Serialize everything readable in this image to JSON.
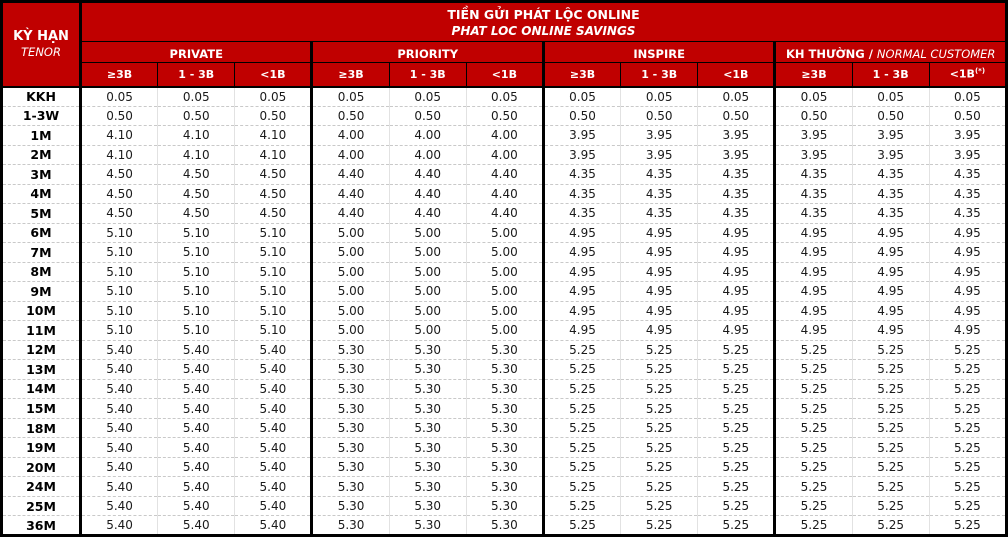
{
  "colors": {
    "header_red": "#C00000",
    "border_black": "#000000",
    "grid_line_gray": "#c9c9c9",
    "value_text": "#1a1a1a"
  },
  "header": {
    "tenor": {
      "vi": "KỲ HẠN",
      "en": "TENOR"
    },
    "title": {
      "vi": "TIỀN GỬI PHÁT LỘC ONLINE",
      "en": "PHAT LOC ONLINE SAVINGS"
    },
    "groups": [
      {
        "label": "PRIVATE"
      },
      {
        "label": "PRIORITY"
      },
      {
        "label": "INSPIRE"
      },
      {
        "label_bold": "KH THƯỜNG / ",
        "label_italic": "NORMAL CUSTOMER"
      }
    ],
    "sub_headers": [
      "≥3B",
      "1 - 3B",
      "<1B",
      "≥3B",
      "1 - 3B",
      "<1B",
      "≥3B",
      "1 - 3B",
      "<1B",
      "≥3B",
      "1 - 3B",
      "<1B"
    ],
    "footnote_mark": "(*)"
  },
  "table": {
    "type": "table",
    "title": "TIỀN GỬI PHÁT LỘC ONLINE / PHAT LOC ONLINE SAVINGS",
    "column_groups": [
      "PRIVATE",
      "PRIORITY",
      "INSPIRE",
      "KH THƯỜNG / NORMAL CUSTOMER"
    ],
    "sub_columns_per_group": [
      "≥3B",
      "1 - 3B",
      "<1B"
    ],
    "rows": [
      {
        "tenor": "KKH",
        "values": [
          "0.05",
          "0.05",
          "0.05",
          "0.05",
          "0.05",
          "0.05",
          "0.05",
          "0.05",
          "0.05",
          "0.05",
          "0.05",
          "0.05"
        ]
      },
      {
        "tenor": "1-3W",
        "values": [
          "0.50",
          "0.50",
          "0.50",
          "0.50",
          "0.50",
          "0.50",
          "0.50",
          "0.50",
          "0.50",
          "0.50",
          "0.50",
          "0.50"
        ]
      },
      {
        "tenor": "1M",
        "values": [
          "4.10",
          "4.10",
          "4.10",
          "4.00",
          "4.00",
          "4.00",
          "3.95",
          "3.95",
          "3.95",
          "3.95",
          "3.95",
          "3.95"
        ]
      },
      {
        "tenor": "2M",
        "values": [
          "4.10",
          "4.10",
          "4.10",
          "4.00",
          "4.00",
          "4.00",
          "3.95",
          "3.95",
          "3.95",
          "3.95",
          "3.95",
          "3.95"
        ]
      },
      {
        "tenor": "3M",
        "values": [
          "4.50",
          "4.50",
          "4.50",
          "4.40",
          "4.40",
          "4.40",
          "4.35",
          "4.35",
          "4.35",
          "4.35",
          "4.35",
          "4.35"
        ]
      },
      {
        "tenor": "4M",
        "values": [
          "4.50",
          "4.50",
          "4.50",
          "4.40",
          "4.40",
          "4.40",
          "4.35",
          "4.35",
          "4.35",
          "4.35",
          "4.35",
          "4.35"
        ]
      },
      {
        "tenor": "5M",
        "values": [
          "4.50",
          "4.50",
          "4.50",
          "4.40",
          "4.40",
          "4.40",
          "4.35",
          "4.35",
          "4.35",
          "4.35",
          "4.35",
          "4.35"
        ]
      },
      {
        "tenor": "6M",
        "values": [
          "5.10",
          "5.10",
          "5.10",
          "5.00",
          "5.00",
          "5.00",
          "4.95",
          "4.95",
          "4.95",
          "4.95",
          "4.95",
          "4.95"
        ]
      },
      {
        "tenor": "7M",
        "values": [
          "5.10",
          "5.10",
          "5.10",
          "5.00",
          "5.00",
          "5.00",
          "4.95",
          "4.95",
          "4.95",
          "4.95",
          "4.95",
          "4.95"
        ]
      },
      {
        "tenor": "8M",
        "values": [
          "5.10",
          "5.10",
          "5.10",
          "5.00",
          "5.00",
          "5.00",
          "4.95",
          "4.95",
          "4.95",
          "4.95",
          "4.95",
          "4.95"
        ]
      },
      {
        "tenor": "9M",
        "values": [
          "5.10",
          "5.10",
          "5.10",
          "5.00",
          "5.00",
          "5.00",
          "4.95",
          "4.95",
          "4.95",
          "4.95",
          "4.95",
          "4.95"
        ]
      },
      {
        "tenor": "10M",
        "values": [
          "5.10",
          "5.10",
          "5.10",
          "5.00",
          "5.00",
          "5.00",
          "4.95",
          "4.95",
          "4.95",
          "4.95",
          "4.95",
          "4.95"
        ]
      },
      {
        "tenor": "11M",
        "values": [
          "5.10",
          "5.10",
          "5.10",
          "5.00",
          "5.00",
          "5.00",
          "4.95",
          "4.95",
          "4.95",
          "4.95",
          "4.95",
          "4.95"
        ]
      },
      {
        "tenor": "12M",
        "values": [
          "5.40",
          "5.40",
          "5.40",
          "5.30",
          "5.30",
          "5.30",
          "5.25",
          "5.25",
          "5.25",
          "5.25",
          "5.25",
          "5.25"
        ]
      },
      {
        "tenor": "13M",
        "values": [
          "5.40",
          "5.40",
          "5.40",
          "5.30",
          "5.30",
          "5.30",
          "5.25",
          "5.25",
          "5.25",
          "5.25",
          "5.25",
          "5.25"
        ]
      },
      {
        "tenor": "14M",
        "values": [
          "5.40",
          "5.40",
          "5.40",
          "5.30",
          "5.30",
          "5.30",
          "5.25",
          "5.25",
          "5.25",
          "5.25",
          "5.25",
          "5.25"
        ]
      },
      {
        "tenor": "15M",
        "values": [
          "5.40",
          "5.40",
          "5.40",
          "5.30",
          "5.30",
          "5.30",
          "5.25",
          "5.25",
          "5.25",
          "5.25",
          "5.25",
          "5.25"
        ]
      },
      {
        "tenor": "18M",
        "values": [
          "5.40",
          "5.40",
          "5.40",
          "5.30",
          "5.30",
          "5.30",
          "5.25",
          "5.25",
          "5.25",
          "5.25",
          "5.25",
          "5.25"
        ]
      },
      {
        "tenor": "19M",
        "values": [
          "5.40",
          "5.40",
          "5.40",
          "5.30",
          "5.30",
          "5.30",
          "5.25",
          "5.25",
          "5.25",
          "5.25",
          "5.25",
          "5.25"
        ]
      },
      {
        "tenor": "20M",
        "values": [
          "5.40",
          "5.40",
          "5.40",
          "5.30",
          "5.30",
          "5.30",
          "5.25",
          "5.25",
          "5.25",
          "5.25",
          "5.25",
          "5.25"
        ]
      },
      {
        "tenor": "24M",
        "values": [
          "5.40",
          "5.40",
          "5.40",
          "5.30",
          "5.30",
          "5.30",
          "5.25",
          "5.25",
          "5.25",
          "5.25",
          "5.25",
          "5.25"
        ]
      },
      {
        "tenor": "25M",
        "values": [
          "5.40",
          "5.40",
          "5.40",
          "5.30",
          "5.30",
          "5.30",
          "5.25",
          "5.25",
          "5.25",
          "5.25",
          "5.25",
          "5.25"
        ]
      },
      {
        "tenor": "36M",
        "values": [
          "5.40",
          "5.40",
          "5.40",
          "5.30",
          "5.30",
          "5.30",
          "5.25",
          "5.25",
          "5.25",
          "5.25",
          "5.25",
          "5.25"
        ]
      }
    ]
  }
}
